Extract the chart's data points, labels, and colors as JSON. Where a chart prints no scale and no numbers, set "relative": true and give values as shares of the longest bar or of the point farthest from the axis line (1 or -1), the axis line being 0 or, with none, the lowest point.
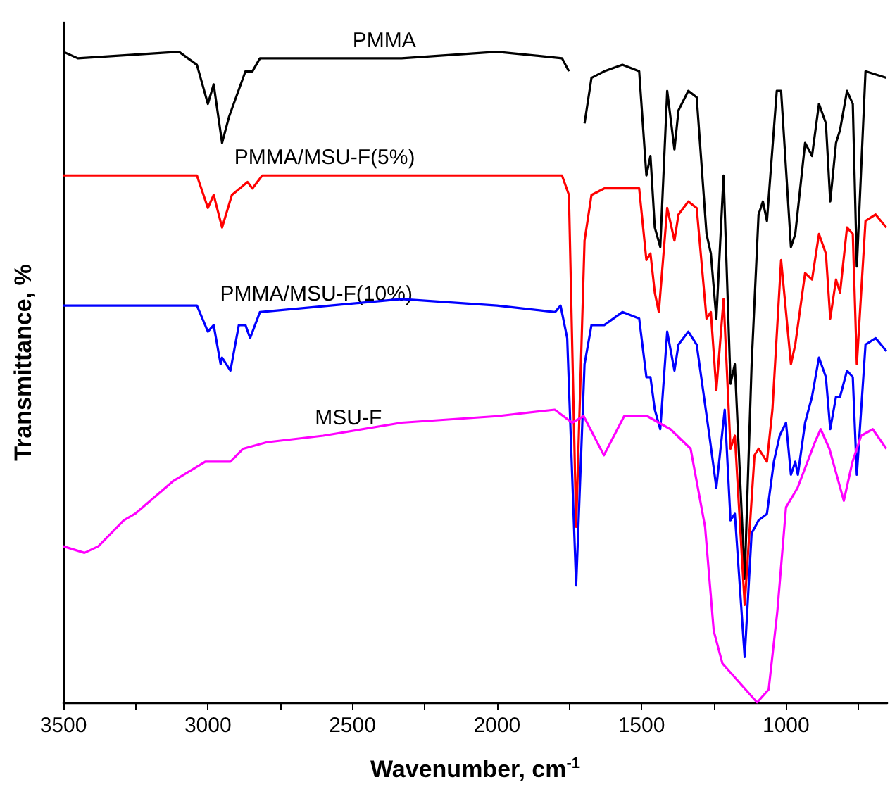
{
  "chart_data": {
    "type": "line",
    "relative": true,
    "xlabel": "Wavenumber, cm$^{-1}$",
    "ylabel": "Transmittance, %",
    "xlim": [
      3500,
      650
    ],
    "xticks": [
      3500,
      {
        "value": 3250,
        "label": null
      },
      3000,
      {
        "value": 2750,
        "label": null
      },
      2500,
      {
        "value": 2250,
        "label": null
      },
      2000,
      {
        "value": 1750,
        "label": null
      },
      1500,
      {
        "value": 1250,
        "label": null
      },
      1000,
      {
        "value": 750,
        "label": null
      }
    ],
    "legend": false,
    "grid": false,
    "series": [
      {
        "name": "PMMA",
        "color": "#000000",
        "x": [
          3500,
          3450,
          3100,
          3038,
          3000,
          2980,
          2951,
          2927,
          2870,
          2846,
          2820,
          2330,
          2000,
          1775,
          1751,
          1726,
          1697,
          1673,
          1629,
          1566,
          1508,
          1483,
          1469,
          1454,
          1435,
          1411,
          1386,
          1372,
          1338,
          1309,
          1275,
          1260,
          1241,
          1216,
          1192,
          1177,
          1143,
          1119,
          1095,
          1080,
          1066,
          1032,
          1017,
          983,
          968,
          934,
          910,
          886,
          862,
          847,
          827,
          813,
          789,
          769,
          755,
          725,
          653
        ],
        "values": [
          1.0,
          0.99,
          1.0,
          0.98,
          0.92,
          0.95,
          0.86,
          0.9,
          0.97,
          0.97,
          0.99,
          0.99,
          1.0,
          0.99,
          0.97,
          null,
          0.89,
          0.96,
          0.97,
          0.98,
          0.97,
          0.81,
          0.84,
          0.73,
          0.7,
          0.94,
          0.85,
          0.91,
          0.94,
          0.93,
          0.72,
          0.69,
          0.59,
          0.81,
          0.49,
          0.52,
          0.19,
          0.52,
          0.75,
          0.77,
          0.74,
          0.94,
          0.94,
          0.7,
          0.72,
          0.86,
          0.84,
          0.92,
          0.89,
          0.77,
          0.86,
          0.88,
          0.94,
          0.92,
          0.67,
          0.97,
          0.96
        ]
      },
      {
        "name": "PMMA/MSU-F(5%)",
        "color": "#ff0000",
        "x": [
          3500,
          3038,
          3000,
          2980,
          2951,
          2917,
          2863,
          2846,
          2812,
          2000,
          1775,
          1751,
          1726,
          1697,
          1673,
          1629,
          1566,
          1508,
          1483,
          1469,
          1454,
          1440,
          1411,
          1386,
          1372,
          1338,
          1309,
          1275,
          1260,
          1241,
          1216,
          1192,
          1177,
          1143,
          1109,
          1095,
          1066,
          1047,
          1017,
          983,
          968,
          934,
          910,
          886,
          862,
          847,
          827,
          813,
          789,
          769,
          755,
          725,
          690,
          653
        ],
        "values": [
          0.81,
          0.81,
          0.76,
          0.78,
          0.73,
          0.78,
          0.8,
          0.79,
          0.81,
          0.81,
          0.81,
          0.78,
          0.27,
          0.71,
          0.78,
          0.79,
          0.79,
          0.79,
          0.68,
          0.69,
          0.63,
          0.6,
          0.76,
          0.71,
          0.75,
          0.77,
          0.76,
          0.59,
          0.6,
          0.48,
          0.62,
          0.39,
          0.41,
          0.15,
          0.38,
          0.39,
          0.37,
          0.45,
          0.68,
          0.52,
          0.55,
          0.66,
          0.65,
          0.72,
          0.69,
          0.59,
          0.65,
          0.63,
          0.73,
          0.72,
          0.52,
          0.74,
          0.75,
          0.73
        ]
      },
      {
        "name": "PMMA/MSU-F(10%)",
        "color": "#0000ff",
        "x": [
          3500,
          3038,
          3000,
          2980,
          2956,
          2951,
          2922,
          2893,
          2870,
          2854,
          2820,
          2330,
          2000,
          1799,
          1780,
          1757,
          1726,
          1697,
          1673,
          1629,
          1566,
          1508,
          1483,
          1469,
          1454,
          1435,
          1411,
          1386,
          1372,
          1338,
          1309,
          1265,
          1241,
          1212,
          1192,
          1177,
          1143,
          1119,
          1095,
          1066,
          1042,
          1022,
          1000,
          983,
          968,
          959,
          934,
          910,
          886,
          862,
          847,
          827,
          813,
          789,
          769,
          755,
          725,
          690,
          653
        ],
        "values": [
          0.61,
          0.61,
          0.57,
          0.58,
          0.52,
          0.53,
          0.51,
          0.58,
          0.58,
          0.56,
          0.6,
          0.62,
          0.61,
          0.6,
          0.61,
          0.56,
          0.18,
          0.52,
          0.58,
          0.58,
          0.6,
          0.59,
          0.5,
          0.5,
          0.45,
          0.42,
          0.57,
          0.51,
          0.55,
          0.57,
          0.55,
          0.41,
          0.33,
          0.45,
          0.28,
          0.29,
          0.07,
          0.26,
          0.28,
          0.29,
          0.37,
          0.41,
          0.43,
          0.35,
          0.37,
          0.35,
          0.43,
          0.47,
          0.53,
          0.5,
          0.42,
          0.47,
          0.47,
          0.51,
          0.5,
          0.35,
          0.55,
          0.56,
          0.54
        ]
      },
      {
        "name": "MSU-F",
        "color": "#ff00ff",
        "x": [
          3500,
          3427,
          3379,
          3291,
          3252,
          3121,
          3009,
          2922,
          2878,
          2796,
          2601,
          2330,
          2000,
          1800,
          1740,
          1700,
          1630,
          1560,
          1480,
          1400,
          1330,
          1280,
          1250,
          1220,
          1160,
          1100,
          1060,
          1030,
          1000,
          960,
          900,
          880,
          850,
          800,
          770,
          740,
          700,
          653
        ],
        "values": [
          0.24,
          0.23,
          0.24,
          0.28,
          0.29,
          0.34,
          0.37,
          0.37,
          0.39,
          0.4,
          0.41,
          0.43,
          0.44,
          0.45,
          0.43,
          0.44,
          0.38,
          0.44,
          0.44,
          0.42,
          0.39,
          0.27,
          0.11,
          0.06,
          0.03,
          0.0,
          0.02,
          0.14,
          0.3,
          0.33,
          0.4,
          0.42,
          0.39,
          0.31,
          0.37,
          0.41,
          0.42,
          0.39
        ]
      }
    ]
  }
}
